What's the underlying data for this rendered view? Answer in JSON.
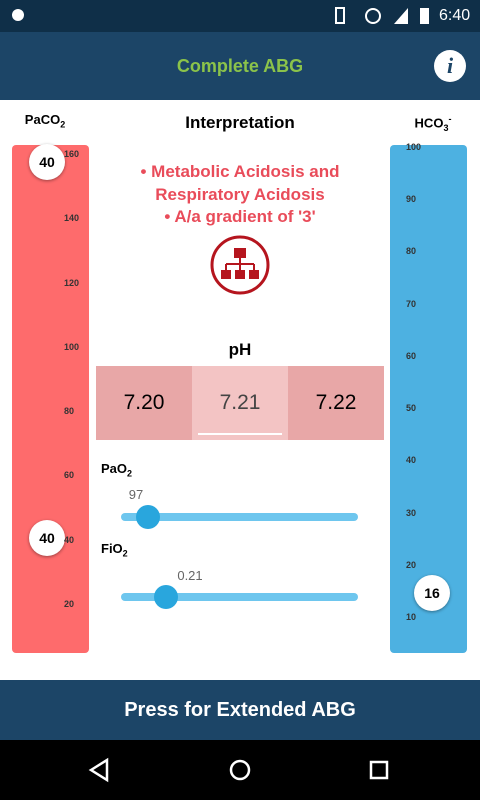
{
  "status_bar": {
    "time": "6:40"
  },
  "app_bar": {
    "title": "Complete ABG",
    "info_icon": "i"
  },
  "paco2": {
    "label": {
      "main": "PaCO",
      "sub": "2"
    },
    "scale": [
      160,
      140,
      120,
      100,
      80,
      60,
      40,
      20
    ],
    "knob_top": "40",
    "knob_value": "40"
  },
  "hco3": {
    "label": {
      "main": "HCO",
      "sub": "3",
      "sup": "-"
    },
    "scale": [
      100,
      90,
      80,
      70,
      60,
      50,
      40,
      30,
      20,
      10
    ],
    "knob_value": "16"
  },
  "interpretation": {
    "title": "Interpretation",
    "lines": [
      "• Metabolic Acidosis and",
      "Respiratory Acidosis",
      "• A/a gradient of '3'"
    ]
  },
  "ph": {
    "label": "pH",
    "options": [
      "7.20",
      "7.21",
      "7.22"
    ]
  },
  "pao2": {
    "label": {
      "main": "PaO",
      "sub": "2"
    },
    "value": "97"
  },
  "fio2": {
    "label": {
      "main": "FiO",
      "sub": "2"
    },
    "value": "0.21"
  },
  "footer_button": "Press for Extended ABG"
}
